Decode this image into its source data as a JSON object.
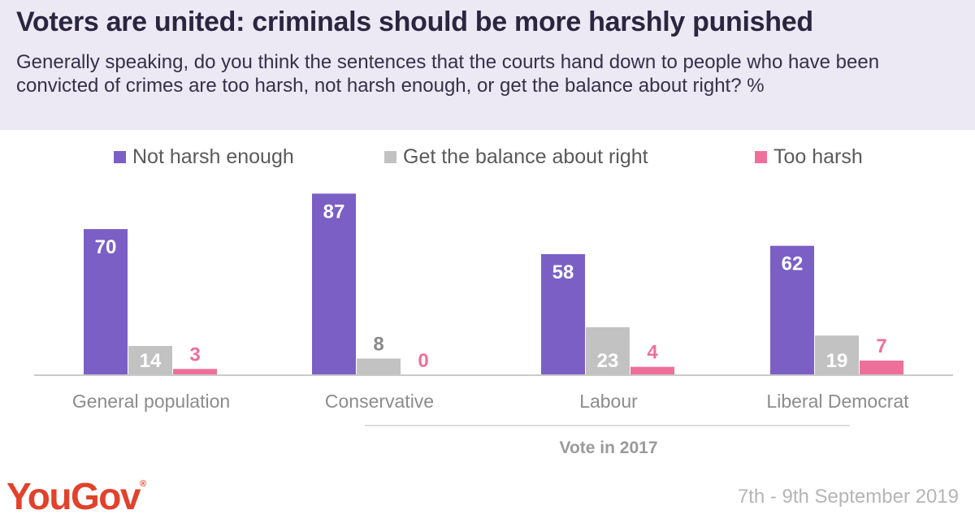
{
  "header": {
    "title": "Voters are united: criminals  should be more harshly punished",
    "subtitle": "Generally speaking, do you think the sentences that the courts hand down to people who have been convicted of crimes are too harsh, not harsh enough, or get the balance about right? %"
  },
  "legend": [
    {
      "label": "Not harsh enough",
      "color": "#7b5fc5"
    },
    {
      "label": "Get the balance about right",
      "color": "#c2c2c2"
    },
    {
      "label": "Too harsh",
      "color": "#ef6f9b"
    }
  ],
  "chart_data": {
    "type": "bar",
    "categories": [
      "General population",
      "Conservative",
      "Labour",
      "Liberal Democrat"
    ],
    "series": [
      {
        "name": "Not harsh enough",
        "values": [
          70,
          87,
          58,
          62
        ],
        "color": "#7b5fc5"
      },
      {
        "name": "Get the balance about right",
        "values": [
          14,
          8,
          23,
          19
        ],
        "color": "#c2c2c2"
      },
      {
        "name": "Too harsh",
        "values": [
          3,
          0,
          4,
          7
        ],
        "color": "#ef6f9b"
      }
    ],
    "group_label": "Vote in 2017",
    "ylim": [
      0,
      100
    ],
    "grid": false,
    "legend_position": "top"
  },
  "footer": {
    "brand": "YouGov",
    "brand_mark": "®",
    "brand_color": "#e2412b",
    "date": "7th - 9th September 2019"
  }
}
